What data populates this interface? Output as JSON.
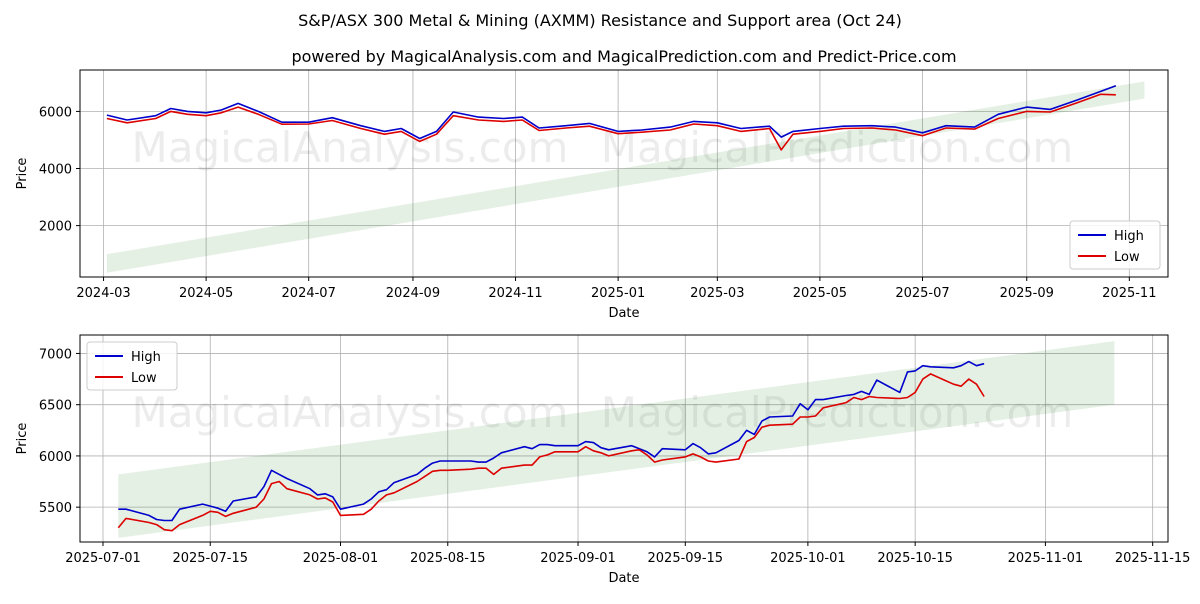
{
  "title": "S&P/ASX 300 Metal & Mining (AXMM) Resistance and Support area (Oct 24)",
  "subtitle": "powered by MagicalAnalysis.com and MagicalPrediction.com and Predict-Price.com",
  "watermark": {
    "left": "MagicalAnalysis.com",
    "right": "MagicalPrediction.com"
  },
  "colors": {
    "high": "#0000cc",
    "low": "#dd0000",
    "band": "#2e8b2e"
  },
  "chart_data": [
    {
      "type": "line",
      "xlabel": "Date",
      "ylabel": "Price",
      "legend_position": "bottom-right",
      "grid": true,
      "xlim": [
        "2024-02-16",
        "2025-11-24"
      ],
      "ylim": [
        200,
        7450
      ],
      "x_ticks": [
        "2024-03-01",
        "2024-05-01",
        "2024-07-01",
        "2024-09-01",
        "2024-11-01",
        "2025-01-01",
        "2025-03-01",
        "2025-05-01",
        "2025-07-01",
        "2025-09-01",
        "2025-11-01"
      ],
      "x_tick_labels": [
        "2024-03",
        "2024-05",
        "2024-07",
        "2024-09",
        "2024-11",
        "2025-01",
        "2025-03",
        "2025-05",
        "2025-07",
        "2025-09",
        "2025-11"
      ],
      "y_ticks": [
        2000,
        4000,
        6000
      ],
      "y_tick_labels": [
        "2000",
        "4000",
        "6000"
      ],
      "band": {
        "x": [
          "2024-03-03",
          "2025-11-10"
        ],
        "upper": [
          1000,
          7050
        ],
        "lower": [
          350,
          6450
        ]
      },
      "series": [
        {
          "name": "High",
          "x": [
            "2024-03-03",
            "2024-03-15",
            "2024-04-01",
            "2024-04-10",
            "2024-04-20",
            "2024-05-01",
            "2024-05-10",
            "2024-05-20",
            "2024-06-01",
            "2024-06-15",
            "2024-07-01",
            "2024-07-15",
            "2024-08-01",
            "2024-08-15",
            "2024-08-25",
            "2024-09-05",
            "2024-09-15",
            "2024-09-25",
            "2024-10-10",
            "2024-10-25",
            "2024-11-05",
            "2024-11-15",
            "2024-12-01",
            "2024-12-15",
            "2025-01-01",
            "2025-01-15",
            "2025-02-01",
            "2025-02-15",
            "2025-03-01",
            "2025-03-15",
            "2025-04-01",
            "2025-04-08",
            "2025-04-15",
            "2025-05-01",
            "2025-05-15",
            "2025-06-01",
            "2025-06-15",
            "2025-07-01",
            "2025-07-15",
            "2025-08-01",
            "2025-08-15",
            "2025-09-01",
            "2025-09-15",
            "2025-10-01",
            "2025-10-15",
            "2025-10-24"
          ],
          "values": [
            5870,
            5700,
            5850,
            6100,
            6000,
            5950,
            6050,
            6280,
            6000,
            5620,
            5620,
            5780,
            5500,
            5300,
            5400,
            5050,
            5300,
            5980,
            5800,
            5750,
            5800,
            5420,
            5500,
            5580,
            5300,
            5350,
            5450,
            5650,
            5600,
            5400,
            5480,
            5100,
            5300,
            5400,
            5480,
            5500,
            5450,
            5250,
            5500,
            5450,
            5900,
            6150,
            6070,
            6400,
            6700,
            6900
          ]
        },
        {
          "name": "Low",
          "x": [
            "2024-03-03",
            "2024-03-15",
            "2024-04-01",
            "2024-04-10",
            "2024-04-20",
            "2024-05-01",
            "2024-05-10",
            "2024-05-20",
            "2024-06-01",
            "2024-06-15",
            "2024-07-01",
            "2024-07-15",
            "2024-08-01",
            "2024-08-15",
            "2024-08-25",
            "2024-09-05",
            "2024-09-15",
            "2024-09-25",
            "2024-10-10",
            "2024-10-25",
            "2024-11-05",
            "2024-11-15",
            "2024-12-01",
            "2024-12-15",
            "2025-01-01",
            "2025-01-15",
            "2025-02-01",
            "2025-02-15",
            "2025-03-01",
            "2025-03-15",
            "2025-04-01",
            "2025-04-08",
            "2025-04-15",
            "2025-05-01",
            "2025-05-15",
            "2025-06-01",
            "2025-06-15",
            "2025-07-01",
            "2025-07-15",
            "2025-08-01",
            "2025-08-15",
            "2025-09-01",
            "2025-09-15",
            "2025-10-01",
            "2025-10-15",
            "2025-10-24"
          ],
          "values": [
            5750,
            5600,
            5750,
            6000,
            5900,
            5850,
            5950,
            6150,
            5900,
            5550,
            5560,
            5680,
            5400,
            5200,
            5300,
            4950,
            5200,
            5850,
            5700,
            5650,
            5700,
            5330,
            5420,
            5480,
            5220,
            5270,
            5350,
            5560,
            5500,
            5300,
            5400,
            4650,
            5200,
            5300,
            5400,
            5420,
            5350,
            5150,
            5420,
            5380,
            5750,
            6000,
            5980,
            6300,
            6600,
            6580
          ]
        }
      ]
    },
    {
      "type": "line",
      "xlabel": "Date",
      "ylabel": "Price",
      "legend_position": "top-left",
      "grid": true,
      "xlim": [
        "2025-06-28",
        "2025-11-17"
      ],
      "ylim": [
        5160,
        7180
      ],
      "x_ticks": [
        "2025-07-01",
        "2025-07-15",
        "2025-08-01",
        "2025-08-15",
        "2025-09-01",
        "2025-09-15",
        "2025-10-01",
        "2025-10-15",
        "2025-11-01",
        "2025-11-15"
      ],
      "x_tick_labels": [
        "2025-07-01",
        "2025-07-15",
        "2025-08-01",
        "2025-08-15",
        "2025-09-01",
        "2025-09-15",
        "2025-10-01",
        "2025-10-15",
        "2025-11-01",
        "2025-11-15"
      ],
      "y_ticks": [
        5500,
        6000,
        6500,
        7000
      ],
      "y_tick_labels": [
        "5500",
        "6000",
        "6500",
        "7000"
      ],
      "band": {
        "x": [
          "2025-07-03",
          "2025-11-10"
        ],
        "upper": [
          5820,
          7120
        ],
        "lower": [
          5200,
          6500
        ]
      },
      "series": [
        {
          "name": "High",
          "x": [
            "2025-07-03",
            "2025-07-04",
            "2025-07-07",
            "2025-07-08",
            "2025-07-09",
            "2025-07-10",
            "2025-07-11",
            "2025-07-14",
            "2025-07-15",
            "2025-07-16",
            "2025-07-17",
            "2025-07-18",
            "2025-07-21",
            "2025-07-22",
            "2025-07-23",
            "2025-07-24",
            "2025-07-25",
            "2025-07-28",
            "2025-07-29",
            "2025-07-30",
            "2025-07-31",
            "2025-08-01",
            "2025-08-04",
            "2025-08-05",
            "2025-08-06",
            "2025-08-07",
            "2025-08-08",
            "2025-08-11",
            "2025-08-12",
            "2025-08-13",
            "2025-08-14",
            "2025-08-15",
            "2025-08-18",
            "2025-08-19",
            "2025-08-20",
            "2025-08-21",
            "2025-08-22",
            "2025-08-25",
            "2025-08-26",
            "2025-08-27",
            "2025-08-28",
            "2025-08-29",
            "2025-09-01",
            "2025-09-02",
            "2025-09-03",
            "2025-09-04",
            "2025-09-05",
            "2025-09-08",
            "2025-09-09",
            "2025-09-10",
            "2025-09-11",
            "2025-09-12",
            "2025-09-15",
            "2025-09-16",
            "2025-09-17",
            "2025-09-18",
            "2025-09-19",
            "2025-09-22",
            "2025-09-23",
            "2025-09-24",
            "2025-09-25",
            "2025-09-26",
            "2025-09-29",
            "2025-09-30",
            "2025-10-01",
            "2025-10-02",
            "2025-10-03",
            "2025-10-06",
            "2025-10-07",
            "2025-10-08",
            "2025-10-09",
            "2025-10-10",
            "2025-10-13",
            "2025-10-14",
            "2025-10-15",
            "2025-10-16",
            "2025-10-17",
            "2025-10-20",
            "2025-10-21",
            "2025-10-22",
            "2025-10-23",
            "2025-10-24"
          ],
          "values": [
            5480,
            5480,
            5420,
            5380,
            5370,
            5370,
            5480,
            5530,
            5510,
            5490,
            5460,
            5560,
            5600,
            5700,
            5860,
            5820,
            5780,
            5680,
            5620,
            5630,
            5600,
            5480,
            5530,
            5580,
            5650,
            5670,
            5740,
            5820,
            5880,
            5930,
            5950,
            5950,
            5950,
            5940,
            5940,
            5980,
            6030,
            6090,
            6070,
            6110,
            6110,
            6100,
            6100,
            6140,
            6130,
            6080,
            6060,
            6100,
            6070,
            6040,
            5990,
            6070,
            6060,
            6120,
            6080,
            6020,
            6030,
            6150,
            6250,
            6210,
            6340,
            6380,
            6390,
            6510,
            6450,
            6550,
            6550,
            6590,
            6600,
            6630,
            6600,
            6740,
            6620,
            6820,
            6830,
            6880,
            6870,
            6860,
            6880,
            6920,
            6880,
            6900
          ]
        },
        {
          "name": "Low",
          "x": [
            "2025-07-03",
            "2025-07-04",
            "2025-07-07",
            "2025-07-08",
            "2025-07-09",
            "2025-07-10",
            "2025-07-11",
            "2025-07-14",
            "2025-07-15",
            "2025-07-16",
            "2025-07-17",
            "2025-07-18",
            "2025-07-21",
            "2025-07-22",
            "2025-07-23",
            "2025-07-24",
            "2025-07-25",
            "2025-07-28",
            "2025-07-29",
            "2025-07-30",
            "2025-07-31",
            "2025-08-01",
            "2025-08-04",
            "2025-08-05",
            "2025-08-06",
            "2025-08-07",
            "2025-08-08",
            "2025-08-11",
            "2025-08-12",
            "2025-08-13",
            "2025-08-14",
            "2025-08-15",
            "2025-08-18",
            "2025-08-19",
            "2025-08-20",
            "2025-08-21",
            "2025-08-22",
            "2025-08-25",
            "2025-08-26",
            "2025-08-27",
            "2025-08-28",
            "2025-08-29",
            "2025-09-01",
            "2025-09-02",
            "2025-09-03",
            "2025-09-04",
            "2025-09-05",
            "2025-09-08",
            "2025-09-09",
            "2025-09-10",
            "2025-09-11",
            "2025-09-12",
            "2025-09-15",
            "2025-09-16",
            "2025-09-17",
            "2025-09-18",
            "2025-09-19",
            "2025-09-22",
            "2025-09-23",
            "2025-09-24",
            "2025-09-25",
            "2025-09-26",
            "2025-09-29",
            "2025-09-30",
            "2025-10-01",
            "2025-10-02",
            "2025-10-03",
            "2025-10-06",
            "2025-10-07",
            "2025-10-08",
            "2025-10-09",
            "2025-10-10",
            "2025-10-13",
            "2025-10-14",
            "2025-10-15",
            "2025-10-16",
            "2025-10-17",
            "2025-10-20",
            "2025-10-21",
            "2025-10-22",
            "2025-10-23",
            "2025-10-24"
          ],
          "values": [
            5300,
            5390,
            5350,
            5330,
            5280,
            5270,
            5330,
            5420,
            5460,
            5450,
            5410,
            5440,
            5500,
            5580,
            5730,
            5750,
            5680,
            5620,
            5580,
            5590,
            5550,
            5420,
            5430,
            5480,
            5560,
            5620,
            5640,
            5750,
            5800,
            5850,
            5860,
            5860,
            5870,
            5880,
            5880,
            5820,
            5880,
            5910,
            5910,
            5990,
            6010,
            6040,
            6040,
            6090,
            6050,
            6030,
            6000,
            6050,
            6060,
            6010,
            5940,
            5960,
            5990,
            6020,
            5990,
            5950,
            5940,
            5970,
            6140,
            6180,
            6280,
            6300,
            6310,
            6380,
            6380,
            6390,
            6470,
            6520,
            6570,
            6550,
            6580,
            6570,
            6560,
            6570,
            6620,
            6750,
            6800,
            6700,
            6680,
            6750,
            6700,
            6580
          ]
        }
      ]
    }
  ]
}
